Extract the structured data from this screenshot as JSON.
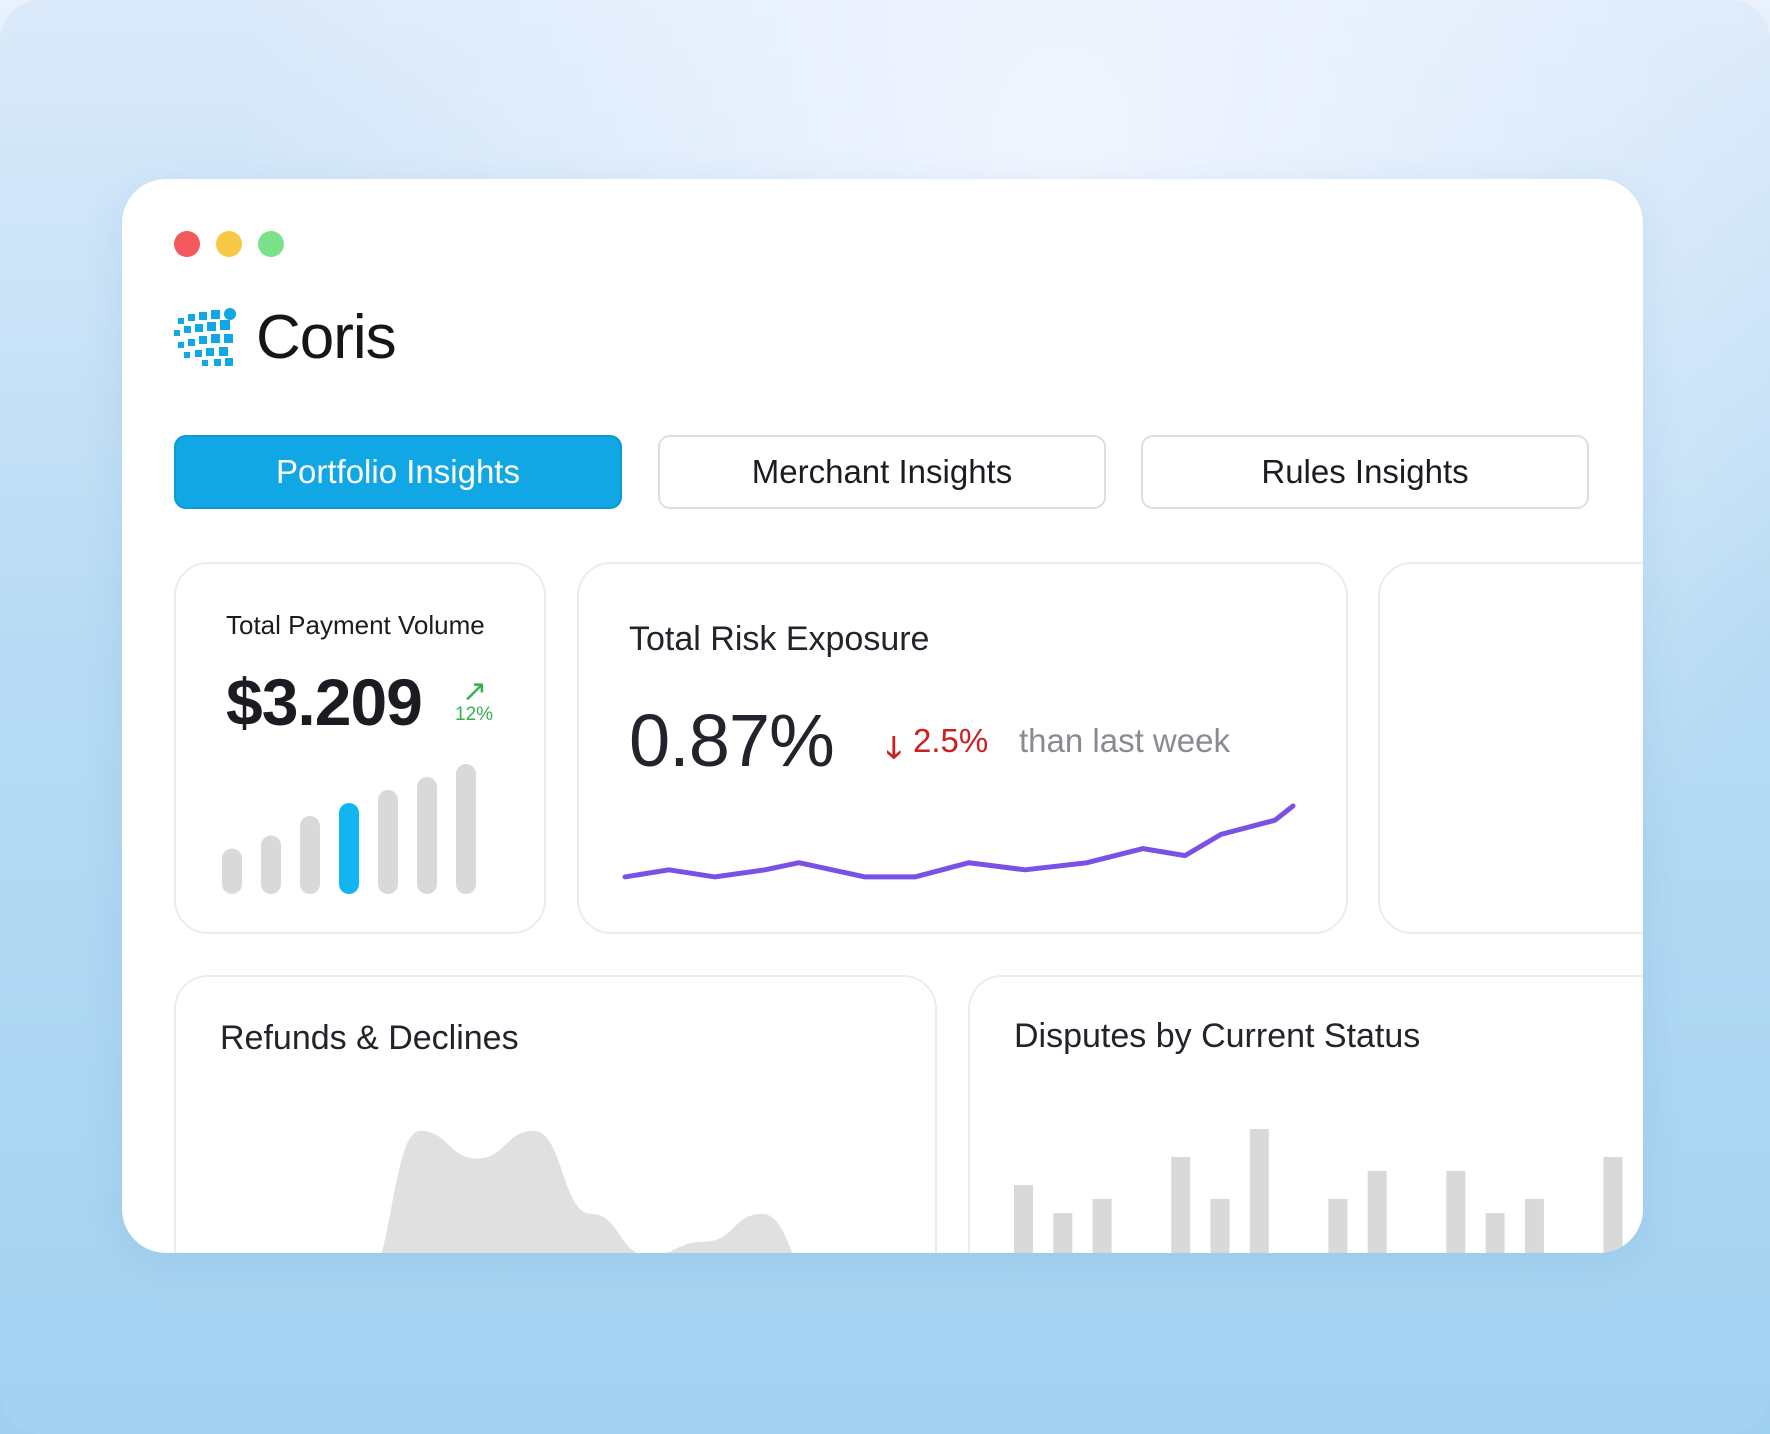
{
  "app": {
    "name": "Coris"
  },
  "window_controls": [
    "close",
    "minimize",
    "maximize"
  ],
  "tabs": [
    {
      "label": "Portfolio Insights",
      "active": true
    },
    {
      "label": "Merchant Insights",
      "active": false
    },
    {
      "label": "Rules Insights",
      "active": false
    }
  ],
  "cards": {
    "total_payment_volume": {
      "title": "Total Payment Volume",
      "value": "$3.209",
      "change": "12%",
      "trend_icon": "arrow-up-right-icon"
    },
    "total_risk_exposure": {
      "title": "Total Risk Exposure",
      "value": "0.87%",
      "change": "2.5%",
      "change_suffix": "than last week",
      "trend_icon": "arrow-down-icon"
    },
    "refunds_declines": {
      "title": "Refunds & Declines"
    },
    "disputes_by_status": {
      "title": "Disputes by Current Status"
    }
  },
  "colors": {
    "accent": "#11a6e4",
    "positive": "#33b24a",
    "negative": "#cc1f1f",
    "line": "#7b50e6",
    "bar_muted": "#d9d9d9",
    "bar_highlight": "#13b5f0"
  },
  "chart_data": [
    {
      "type": "bar",
      "values": [
        3.5,
        4.5,
        6,
        7,
        8,
        9,
        10
      ],
      "highlight_index": 3
    },
    {
      "type": "line",
      "values": [
        1,
        2,
        1,
        2,
        3,
        1,
        1,
        3,
        2,
        3,
        5,
        4,
        7,
        9,
        11
      ]
    },
    {
      "type": "area",
      "values": [
        0,
        1,
        12,
        10,
        12,
        6,
        3,
        4,
        6,
        1,
        2
      ]
    },
    {
      "type": "bar",
      "values": [
        8,
        6,
        7,
        3,
        10,
        7,
        12,
        3,
        7,
        9,
        2,
        9,
        6,
        7,
        3,
        10,
        6
      ]
    }
  ]
}
